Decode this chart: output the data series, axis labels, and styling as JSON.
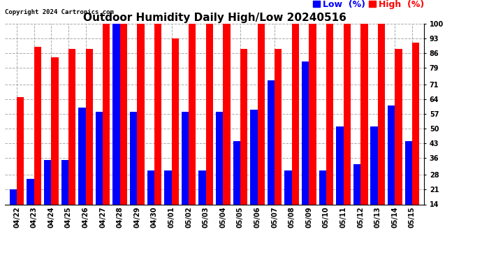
{
  "title": "Outdoor Humidity Daily High/Low 20240516",
  "copyright": "Copyright 2024 Cartronics.com",
  "legend_low": "Low  (%)",
  "legend_high": "High  (%)",
  "categories": [
    "04/22",
    "04/23",
    "04/24",
    "04/25",
    "04/26",
    "04/27",
    "04/28",
    "04/29",
    "04/30",
    "05/01",
    "05/02",
    "05/03",
    "05/04",
    "05/05",
    "05/06",
    "05/07",
    "05/08",
    "05/09",
    "05/10",
    "05/11",
    "05/12",
    "05/13",
    "05/14",
    "05/15"
  ],
  "high_values": [
    65,
    89,
    84,
    88,
    88,
    100,
    100,
    100,
    100,
    93,
    100,
    100,
    100,
    88,
    100,
    88,
    100,
    100,
    100,
    100,
    100,
    100,
    88,
    91
  ],
  "low_values": [
    21,
    26,
    35,
    35,
    60,
    58,
    100,
    58,
    30,
    30,
    58,
    30,
    58,
    44,
    59,
    73,
    30,
    82,
    30,
    51,
    33,
    51,
    61,
    44
  ],
  "high_color": "#ff0000",
  "low_color": "#0000ff",
  "background_color": "#ffffff",
  "grid_color": "#aaaaaa",
  "yticks": [
    14,
    21,
    28,
    36,
    43,
    50,
    57,
    64,
    71,
    79,
    86,
    93,
    100
  ],
  "ymin": 14,
  "ymax": 100,
  "title_fontsize": 11,
  "tick_fontsize": 7,
  "legend_fontsize": 9,
  "copyright_fontsize": 6.5
}
